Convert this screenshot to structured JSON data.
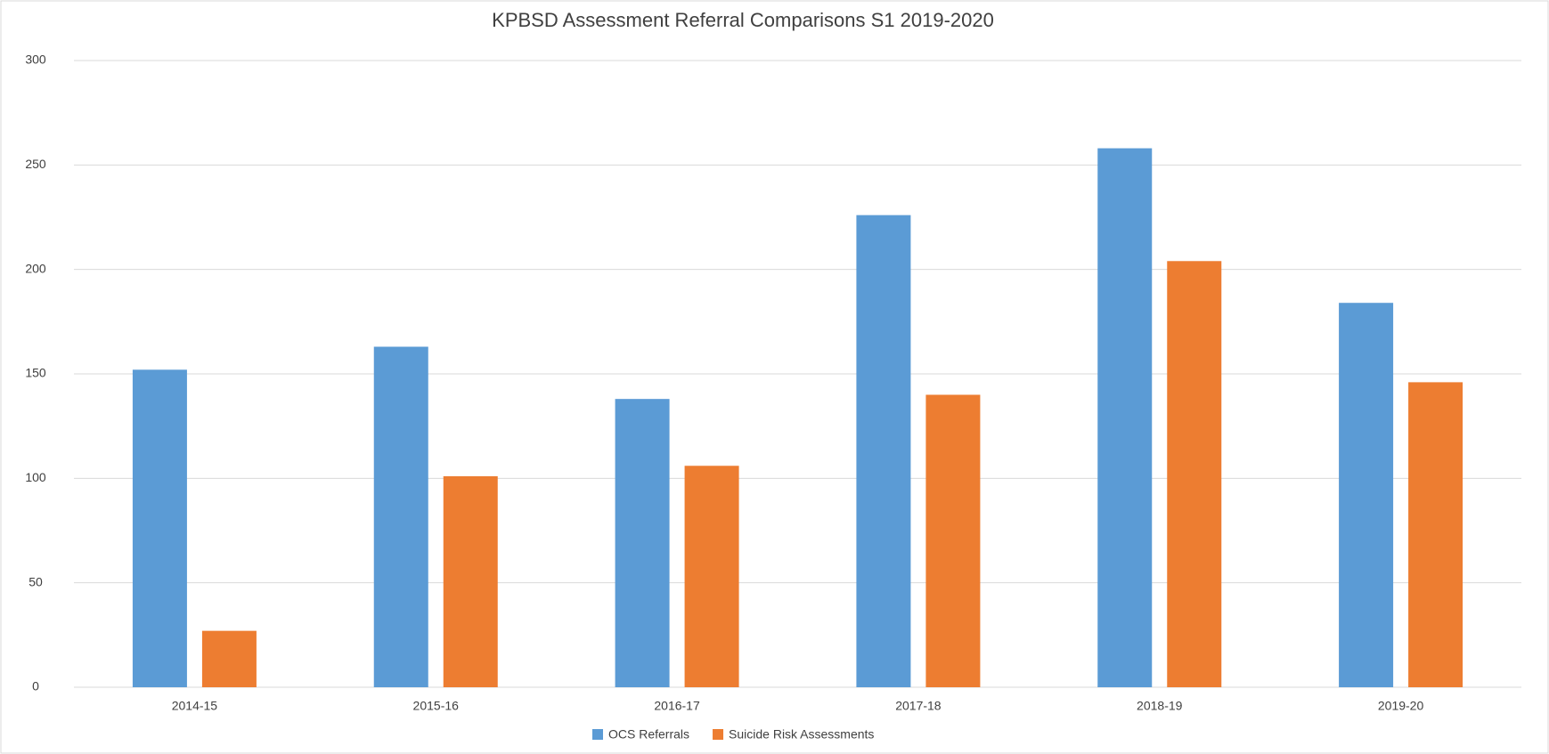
{
  "chart_data": {
    "type": "bar",
    "title": "KPBSD Assessment Referral Comparisons S1 2019-2020",
    "categories": [
      "2014-15",
      "2015-16",
      "2016-17",
      "2017-18",
      "2018-19",
      "2019-20"
    ],
    "series": [
      {
        "name": "OCS Referrals",
        "color": "#5b9bd5",
        "values": [
          152,
          163,
          138,
          226,
          258,
          184
        ]
      },
      {
        "name": "Suicide Risk Assessments",
        "color": "#ed7d31",
        "values": [
          27,
          101,
          106,
          140,
          204,
          146
        ]
      }
    ],
    "ylim": [
      0,
      300
    ],
    "yticks": [
      0,
      50,
      100,
      150,
      200,
      250,
      300
    ],
    "grid": true,
    "legend": "bottom"
  }
}
